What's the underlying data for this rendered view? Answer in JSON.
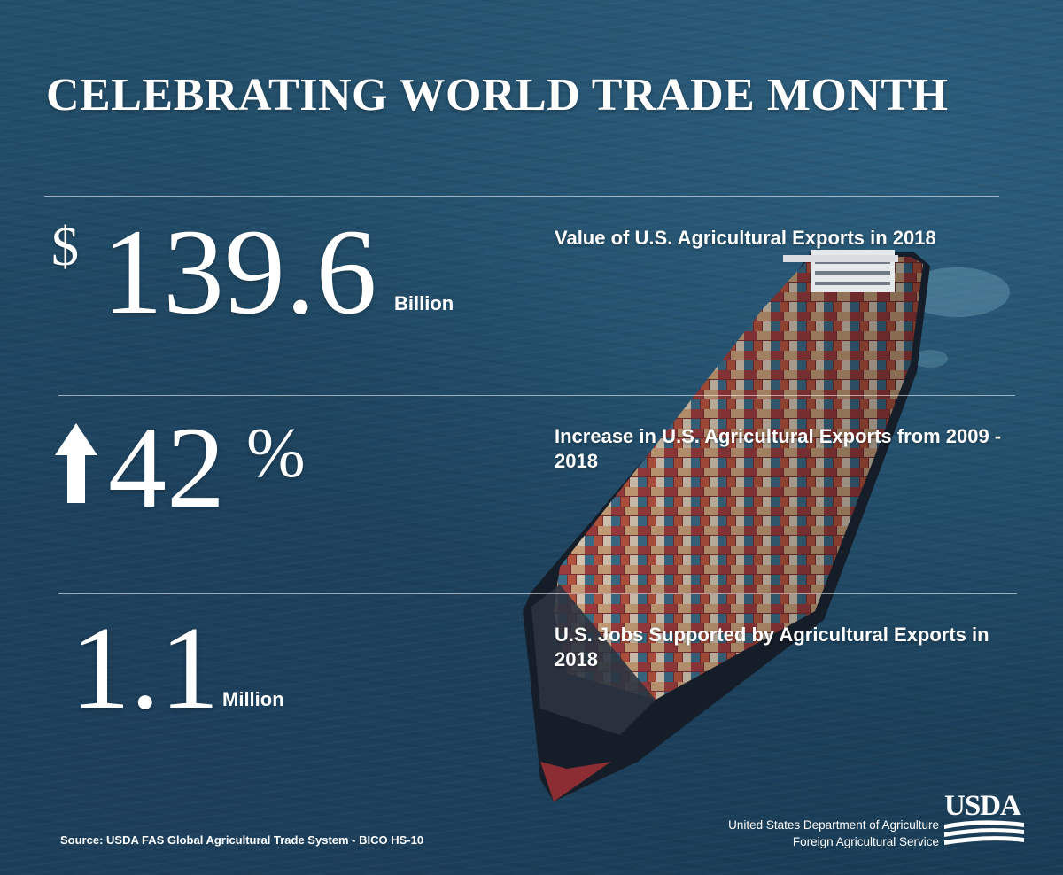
{
  "title": "CELEBRATING WORLD TRADE MONTH",
  "stats": [
    {
      "dollar": "$",
      "value": "139.6",
      "unit": "Billion",
      "description": "Value of U.S. Agricultural Exports in 2018"
    },
    {
      "arrow": "up-arrow-icon",
      "value": "42",
      "percent": "%",
      "description": "Increase in U.S. Agricultural Exports from 2009 - 2018"
    },
    {
      "value": "1.1",
      "unit": "Million",
      "description": "U.S. Jobs Supported by Agricultural Exports in 2018"
    }
  ],
  "source": "Source: USDA FAS Global Agricultural Trade System - BICO HS-10",
  "agency": {
    "line1": "United States Department of Agriculture",
    "line2": "Foreign Agricultural Service",
    "logo_text": "USDA"
  },
  "colors": {
    "sea": "#1f4863",
    "text": "#ffffff"
  }
}
